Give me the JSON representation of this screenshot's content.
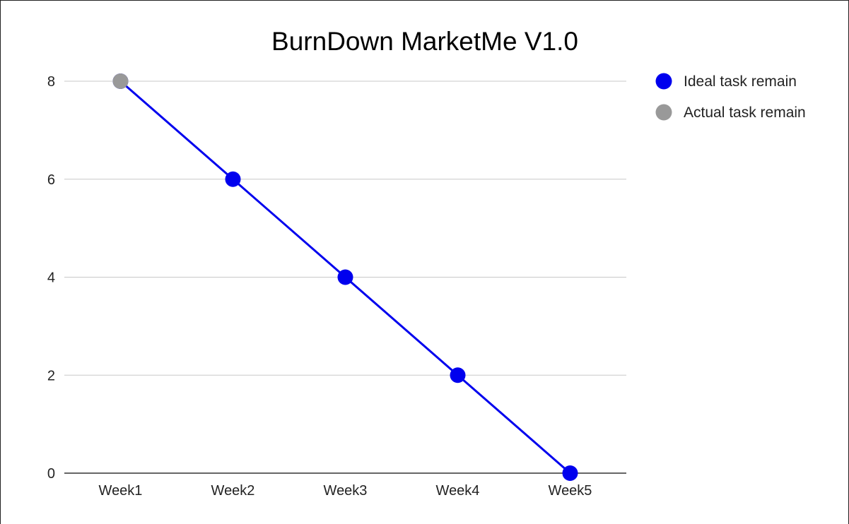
{
  "chart_data": {
    "type": "line",
    "title": "BurnDown MarketMe V1.0",
    "xlabel": "",
    "ylabel": "",
    "categories": [
      "Week1",
      "Week2",
      "Week3",
      "Week4",
      "Week5"
    ],
    "ylim": [
      0,
      8
    ],
    "yticks": [
      "0",
      "2",
      "4",
      "6",
      "8"
    ],
    "grid": true,
    "legend_position": "right",
    "series": [
      {
        "name": "Ideal task remain",
        "color": "#0000ee",
        "values": [
          8,
          6,
          4,
          2,
          0
        ]
      },
      {
        "name": "Actual task remain",
        "color": "#999999",
        "values": [
          8,
          null,
          null,
          null,
          null
        ]
      }
    ]
  }
}
